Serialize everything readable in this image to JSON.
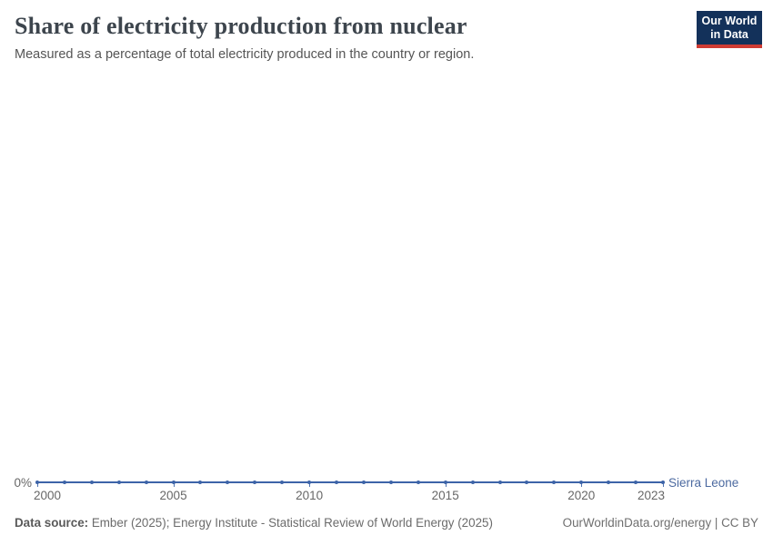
{
  "header": {
    "title": "Share of electricity production from nuclear",
    "subtitle": "Measured as a percentage of total electricity produced in the country or region.",
    "logo": {
      "line1": "Our World",
      "line2": "in Data"
    }
  },
  "chart_data": {
    "type": "line",
    "title": "Share of electricity production from nuclear",
    "subtitle": "Measured as a percentage of total electricity produced in the country or region.",
    "x": [
      2000,
      2001,
      2002,
      2003,
      2004,
      2005,
      2006,
      2007,
      2008,
      2009,
      2010,
      2011,
      2012,
      2013,
      2014,
      2015,
      2016,
      2017,
      2018,
      2019,
      2020,
      2021,
      2022,
      2023
    ],
    "series": [
      {
        "name": "Sierra Leone",
        "color": "#3d64a8",
        "values": [
          0,
          0,
          0,
          0,
          0,
          0,
          0,
          0,
          0,
          0,
          0,
          0,
          0,
          0,
          0,
          0,
          0,
          0,
          0,
          0,
          0,
          0,
          0,
          0
        ]
      }
    ],
    "x_ticks": [
      2000,
      2005,
      2010,
      2015,
      2020,
      2023
    ],
    "y_ticks": [
      {
        "value": 0,
        "label": "0%"
      }
    ],
    "xlim": [
      2000,
      2023
    ],
    "ylim": [
      0,
      0
    ],
    "unit": "%",
    "grid": false,
    "legend_position": "end-of-line"
  },
  "footer": {
    "data_source_label": "Data source:",
    "data_source_text": " Ember (2025); Energy Institute - Statistical Review of World Energy (2025)",
    "credit": "OurWorldinData.org/energy | CC BY"
  },
  "colors": {
    "line": "#3d64a8",
    "entity_label": "#4c6aa0",
    "axis_text": "#676767",
    "logo_bg": "#13315a",
    "logo_red": "#cf3b33"
  }
}
